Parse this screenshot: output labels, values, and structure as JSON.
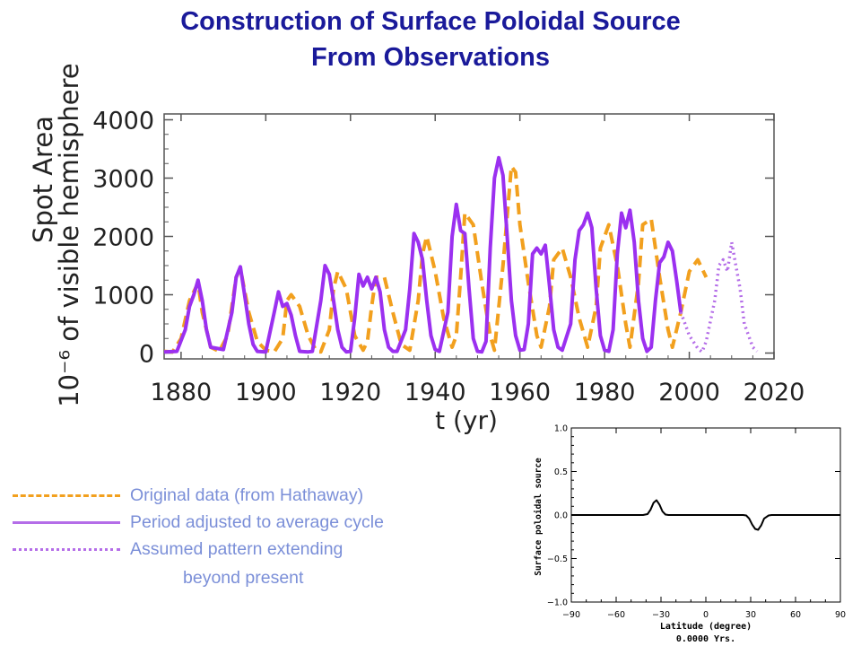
{
  "slide": {
    "title_line1": "Construction of Surface Poloidal Source",
    "title_line2": "From Observations"
  },
  "legend": {
    "original": "Original data (from Hathaway)",
    "adjusted": "Period adjusted to average cycle",
    "assumed_line1": "Assumed pattern extending",
    "assumed_line2": "beyond present"
  },
  "colors": {
    "title": "#1a1a9a",
    "original": "#f2a01e",
    "adjusted": "#9b30f0",
    "assumed": "#b46de8",
    "legend_text": "#7b8fd8"
  },
  "chart_data": [
    {
      "type": "line",
      "xlabel": "t (yr)",
      "ylabel_line1": "Spot Area",
      "ylabel_line2": "10⁻⁶ of visible hemisphere",
      "xlim": [
        1876,
        2020
      ],
      "ylim": [
        -100,
        4100
      ],
      "xticks": [
        1880,
        1900,
        1920,
        1940,
        1960,
        1980,
        2000,
        2020
      ],
      "yticks": [
        0,
        1000,
        2000,
        3000,
        4000
      ],
      "series": [
        {
          "name": "Original data (from Hathaway)",
          "style": "dashed",
          "points": [
            [
              1876,
              30
            ],
            [
              1878,
              20
            ],
            [
              1880,
              250
            ],
            [
              1882,
              900
            ],
            [
              1884,
              1200
            ],
            [
              1885,
              700
            ],
            [
              1887,
              100
            ],
            [
              1889,
              30
            ],
            [
              1891,
              300
            ],
            [
              1893,
              1300
            ],
            [
              1894,
              1450
            ],
            [
              1896,
              700
            ],
            [
              1898,
              200
            ],
            [
              1900,
              50
            ],
            [
              1902,
              20
            ],
            [
              1904,
              250
            ],
            [
              1905,
              900
            ],
            [
              1906,
              1000
            ],
            [
              1908,
              800
            ],
            [
              1910,
              300
            ],
            [
              1912,
              30
            ],
            [
              1913,
              20
            ],
            [
              1915,
              400
            ],
            [
              1916,
              1100
            ],
            [
              1917,
              1400
            ],
            [
              1919,
              1100
            ],
            [
              1921,
              300
            ],
            [
              1923,
              50
            ],
            [
              1924,
              200
            ],
            [
              1925,
              800
            ],
            [
              1926,
              1300
            ],
            [
              1928,
              1300
            ],
            [
              1930,
              700
            ],
            [
              1932,
              150
            ],
            [
              1934,
              50
            ],
            [
              1936,
              900
            ],
            [
              1937,
              1700
            ],
            [
              1938,
              2000
            ],
            [
              1940,
              1400
            ],
            [
              1942,
              600
            ],
            [
              1944,
              100
            ],
            [
              1945,
              300
            ],
            [
              1946,
              1300
            ],
            [
              1947,
              2400
            ],
            [
              1949,
              2200
            ],
            [
              1951,
              1200
            ],
            [
              1953,
              300
            ],
            [
              1954,
              50
            ],
            [
              1956,
              1500
            ],
            [
              1958,
              3200
            ],
            [
              1959,
              3100
            ],
            [
              1960,
              2200
            ],
            [
              1962,
              1200
            ],
            [
              1964,
              300
            ],
            [
              1965,
              100
            ],
            [
              1967,
              800
            ],
            [
              1968,
              1600
            ],
            [
              1970,
              1800
            ],
            [
              1972,
              1300
            ],
            [
              1974,
              600
            ],
            [
              1976,
              100
            ],
            [
              1978,
              800
            ],
            [
              1979,
              1800
            ],
            [
              1981,
              2200
            ],
            [
              1983,
              1500
            ],
            [
              1985,
              500
            ],
            [
              1986,
              100
            ],
            [
              1988,
              1200
            ],
            [
              1989,
              2200
            ],
            [
              1991,
              2300
            ],
            [
              1993,
              1300
            ],
            [
              1995,
              400
            ],
            [
              1996,
              100
            ],
            [
              1998,
              700
            ],
            [
              2000,
              1400
            ],
            [
              2002,
              1600
            ],
            [
              2004,
              1300
            ]
          ]
        },
        {
          "name": "Period adjusted to average cycle",
          "style": "solid",
          "points": [
            [
              1876,
              20
            ],
            [
              1879,
              30
            ],
            [
              1881,
              400
            ],
            [
              1882,
              800
            ],
            [
              1883,
              1000
            ],
            [
              1884,
              1250
            ],
            [
              1885,
              900
            ],
            [
              1886,
              400
            ],
            [
              1887,
              100
            ],
            [
              1890,
              60
            ],
            [
              1892,
              700
            ],
            [
              1893,
              1300
            ],
            [
              1894,
              1480
            ],
            [
              1895,
              1000
            ],
            [
              1896,
              500
            ],
            [
              1897,
              150
            ],
            [
              1898,
              30
            ],
            [
              1900,
              20
            ],
            [
              1902,
              700
            ],
            [
              1903,
              1050
            ],
            [
              1904,
              800
            ],
            [
              1905,
              850
            ],
            [
              1906,
              650
            ],
            [
              1907,
              300
            ],
            [
              1908,
              30
            ],
            [
              1910,
              20
            ],
            [
              1911,
              30
            ],
            [
              1913,
              900
            ],
            [
              1914,
              1500
            ],
            [
              1915,
              1350
            ],
            [
              1916,
              900
            ],
            [
              1917,
              400
            ],
            [
              1918,
              100
            ],
            [
              1919,
              20
            ],
            [
              1920,
              30
            ],
            [
              1921,
              600
            ],
            [
              1922,
              1350
            ],
            [
              1923,
              1150
            ],
            [
              1924,
              1300
            ],
            [
              1925,
              1100
            ],
            [
              1926,
              1300
            ],
            [
              1927,
              1050
            ],
            [
              1928,
              400
            ],
            [
              1929,
              100
            ],
            [
              1930,
              30
            ],
            [
              1931,
              30
            ],
            [
              1933,
              400
            ],
            [
              1934,
              1100
            ],
            [
              1935,
              2050
            ],
            [
              1936,
              1900
            ],
            [
              1937,
              1600
            ],
            [
              1938,
              900
            ],
            [
              1939,
              300
            ],
            [
              1940,
              60
            ],
            [
              1941,
              30
            ],
            [
              1943,
              700
            ],
            [
              1944,
              2000
            ],
            [
              1945,
              2550
            ],
            [
              1946,
              2100
            ],
            [
              1947,
              2050
            ],
            [
              1948,
              1100
            ],
            [
              1949,
              250
            ],
            [
              1950,
              30
            ],
            [
              1951,
              20
            ],
            [
              1952,
              200
            ],
            [
              1953,
              1800
            ],
            [
              1954,
              3000
            ],
            [
              1955,
              3350
            ],
            [
              1956,
              3050
            ],
            [
              1957,
              2000
            ],
            [
              1958,
              900
            ],
            [
              1959,
              300
            ],
            [
              1960,
              50
            ],
            [
              1961,
              60
            ],
            [
              1962,
              500
            ],
            [
              1963,
              1700
            ],
            [
              1964,
              1800
            ],
            [
              1965,
              1700
            ],
            [
              1966,
              1850
            ],
            [
              1967,
              1150
            ],
            [
              1968,
              400
            ],
            [
              1969,
              100
            ],
            [
              1970,
              50
            ],
            [
              1972,
              500
            ],
            [
              1973,
              1600
            ],
            [
              1974,
              2100
            ],
            [
              1975,
              2200
            ],
            [
              1976,
              2400
            ],
            [
              1977,
              2150
            ],
            [
              1978,
              1100
            ],
            [
              1979,
              300
            ],
            [
              1980,
              50
            ],
            [
              1981,
              30
            ],
            [
              1982,
              400
            ],
            [
              1983,
              1700
            ],
            [
              1984,
              2400
            ],
            [
              1985,
              2150
            ],
            [
              1986,
              2450
            ],
            [
              1987,
              1900
            ],
            [
              1988,
              900
            ],
            [
              1989,
              250
            ],
            [
              1990,
              30
            ],
            [
              1991,
              100
            ],
            [
              1992,
              900
            ],
            [
              1993,
              1550
            ],
            [
              1994,
              1650
            ],
            [
              1995,
              1900
            ],
            [
              1996,
              1750
            ],
            [
              1997,
              1250
            ],
            [
              1998,
              700
            ]
          ]
        },
        {
          "name": "Assumed pattern extending beyond present",
          "style": "dotted",
          "points": [
            [
              1998,
              700
            ],
            [
              2000,
              300
            ],
            [
              2002,
              80
            ],
            [
              2003,
              20
            ],
            [
              2004,
              200
            ],
            [
              2006,
              900
            ],
            [
              2007,
              1500
            ],
            [
              2008,
              1600
            ],
            [
              2009,
              1400
            ],
            [
              2010,
              1900
            ],
            [
              2012,
              1100
            ],
            [
              2013,
              500
            ],
            [
              2015,
              100
            ],
            [
              2016,
              30
            ]
          ]
        }
      ]
    },
    {
      "type": "line",
      "xlabel": "Latitude (degree)",
      "ylabel": "Surface poloidal source",
      "subtitle": "0.0000 Yrs.",
      "xlim": [
        -90,
        90
      ],
      "ylim": [
        -1.0,
        1.0
      ],
      "xticks": [
        -90,
        -60,
        -30,
        0,
        30,
        60,
        90
      ],
      "xtick_labels": [
        "−90",
        "−60",
        "−30",
        "0",
        "30",
        "60",
        "90"
      ],
      "yticks": [
        1.0,
        0.5,
        0.0,
        -0.5,
        -1.0
      ],
      "ytick_labels": [
        "1.0",
        "0.5",
        "0.0",
        "−0.5",
        "−1.0"
      ],
      "series": [
        {
          "style": "solid",
          "points": [
            [
              -90,
              0
            ],
            [
              -42,
              0
            ],
            [
              -39,
              0.01
            ],
            [
              -37,
              0.06
            ],
            [
              -35,
              0.14
            ],
            [
              -33,
              0.17
            ],
            [
              -31,
              0.12
            ],
            [
              -29,
              0.04
            ],
            [
              -27,
              0.005
            ],
            [
              -25,
              0
            ],
            [
              25,
              0
            ],
            [
              27,
              -0.005
            ],
            [
              29,
              -0.04
            ],
            [
              31,
              -0.11
            ],
            [
              33,
              -0.16
            ],
            [
              35,
              -0.17
            ],
            [
              37,
              -0.12
            ],
            [
              39,
              -0.04
            ],
            [
              42,
              -0.005
            ],
            [
              44,
              0
            ],
            [
              90,
              0
            ]
          ]
        }
      ]
    }
  ]
}
